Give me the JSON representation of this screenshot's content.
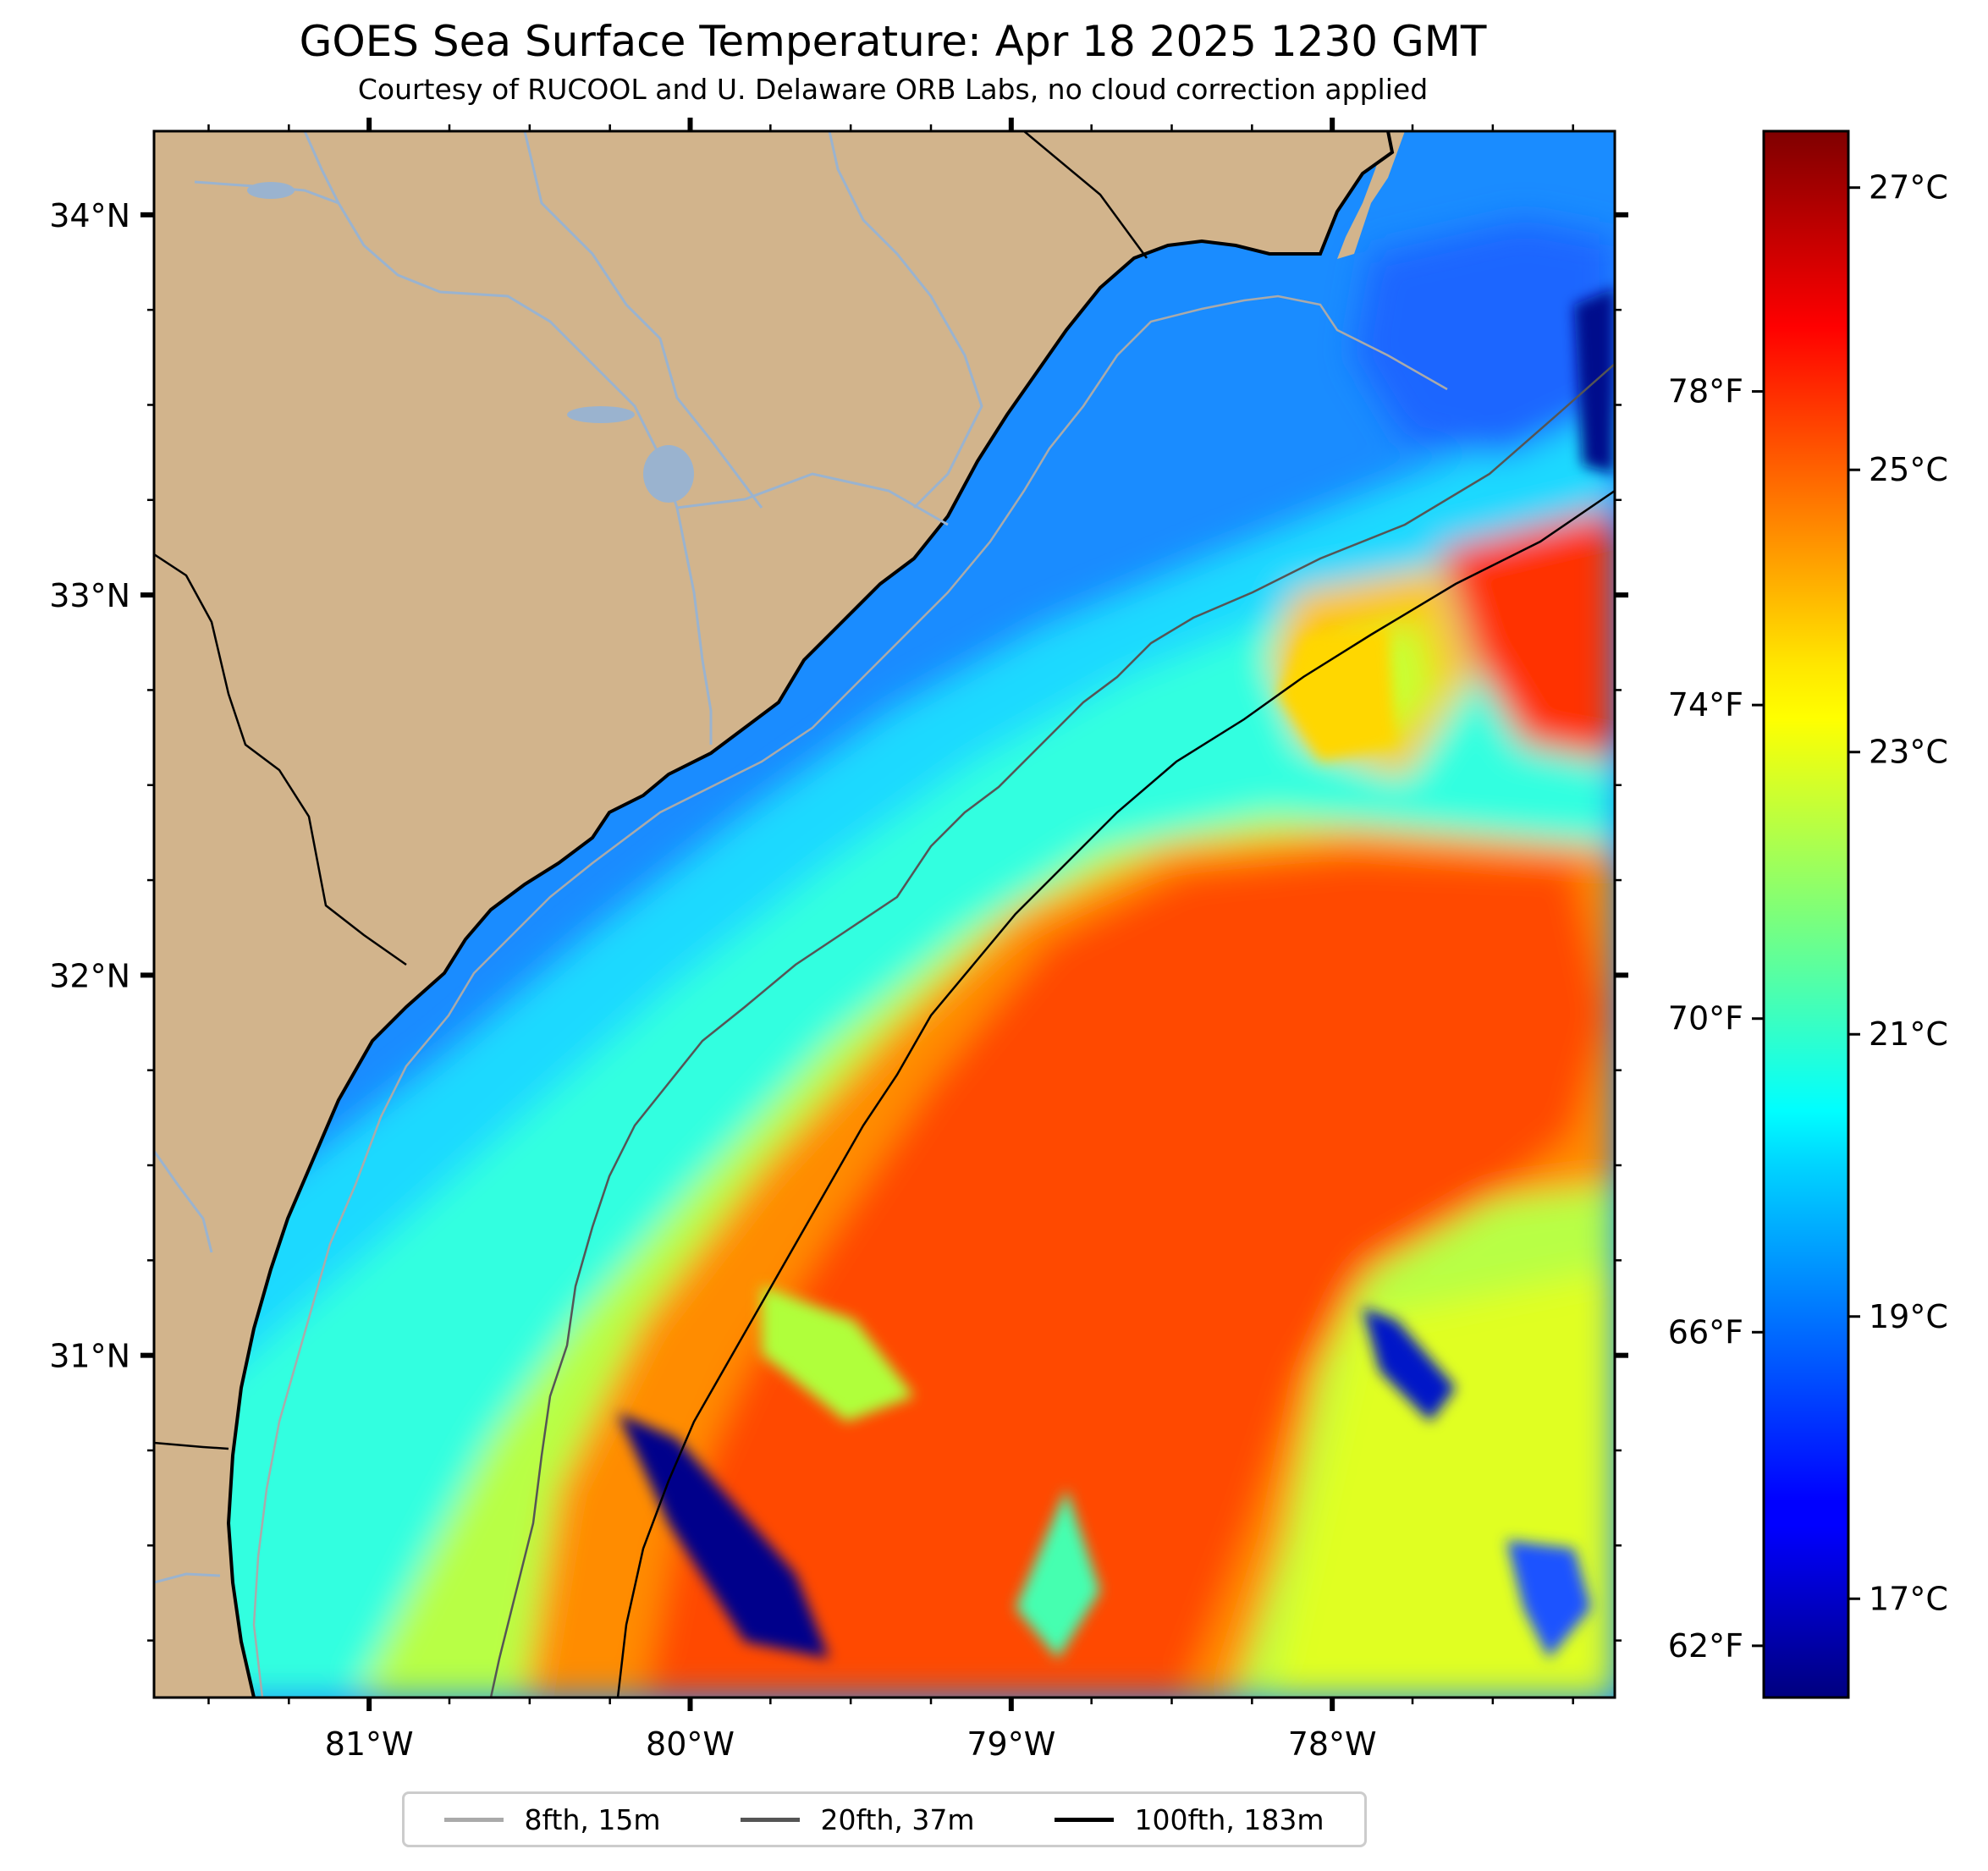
{
  "header": {
    "title": "GOES Sea Surface Temperature: Apr 18 2025 1230 GMT",
    "subtitle": "Courtesy of RUCOOL and U. Delaware ORB Labs, no cloud correction applied"
  },
  "map": {
    "lon_range": [
      -81.67,
      -77.12
    ],
    "lat_range": [
      30.1,
      34.22
    ],
    "lon_ticks": [
      {
        "value": -81,
        "label": "81°W"
      },
      {
        "value": -80,
        "label": "80°W"
      },
      {
        "value": -79,
        "label": "79°W"
      },
      {
        "value": -78,
        "label": "78°W"
      }
    ],
    "lat_ticks": [
      {
        "value": 34,
        "label": "34°N"
      },
      {
        "value": 33,
        "label": "33°N"
      },
      {
        "value": 32,
        "label": "32°N"
      },
      {
        "value": 31,
        "label": "31°N"
      }
    ],
    "land_color": "#d2b48c",
    "water_color": "#9ab3cf"
  },
  "colorbar": {
    "colormap": "jet",
    "celsius_range": [
      16.3,
      27.4
    ],
    "celsius_ticks": [
      {
        "value": 17,
        "label": "17°C"
      },
      {
        "value": 19,
        "label": "19°C"
      },
      {
        "value": 21,
        "label": "21°C"
      },
      {
        "value": 23,
        "label": "23°C"
      },
      {
        "value": 25,
        "label": "25°C"
      },
      {
        "value": 27,
        "label": "27°C"
      }
    ],
    "fahrenheit_ticks": [
      {
        "value": 62,
        "label": "62°F"
      },
      {
        "value": 66,
        "label": "66°F"
      },
      {
        "value": 70,
        "label": "70°F"
      },
      {
        "value": 74,
        "label": "74°F"
      },
      {
        "value": 78,
        "label": "78°F"
      }
    ]
  },
  "legend": {
    "items": [
      {
        "label": "8fth, 15m",
        "color": "#aaaaaa"
      },
      {
        "label": "20fth, 37m",
        "color": "#555555"
      },
      {
        "label": "100fth, 183m",
        "color": "#000000"
      }
    ]
  }
}
